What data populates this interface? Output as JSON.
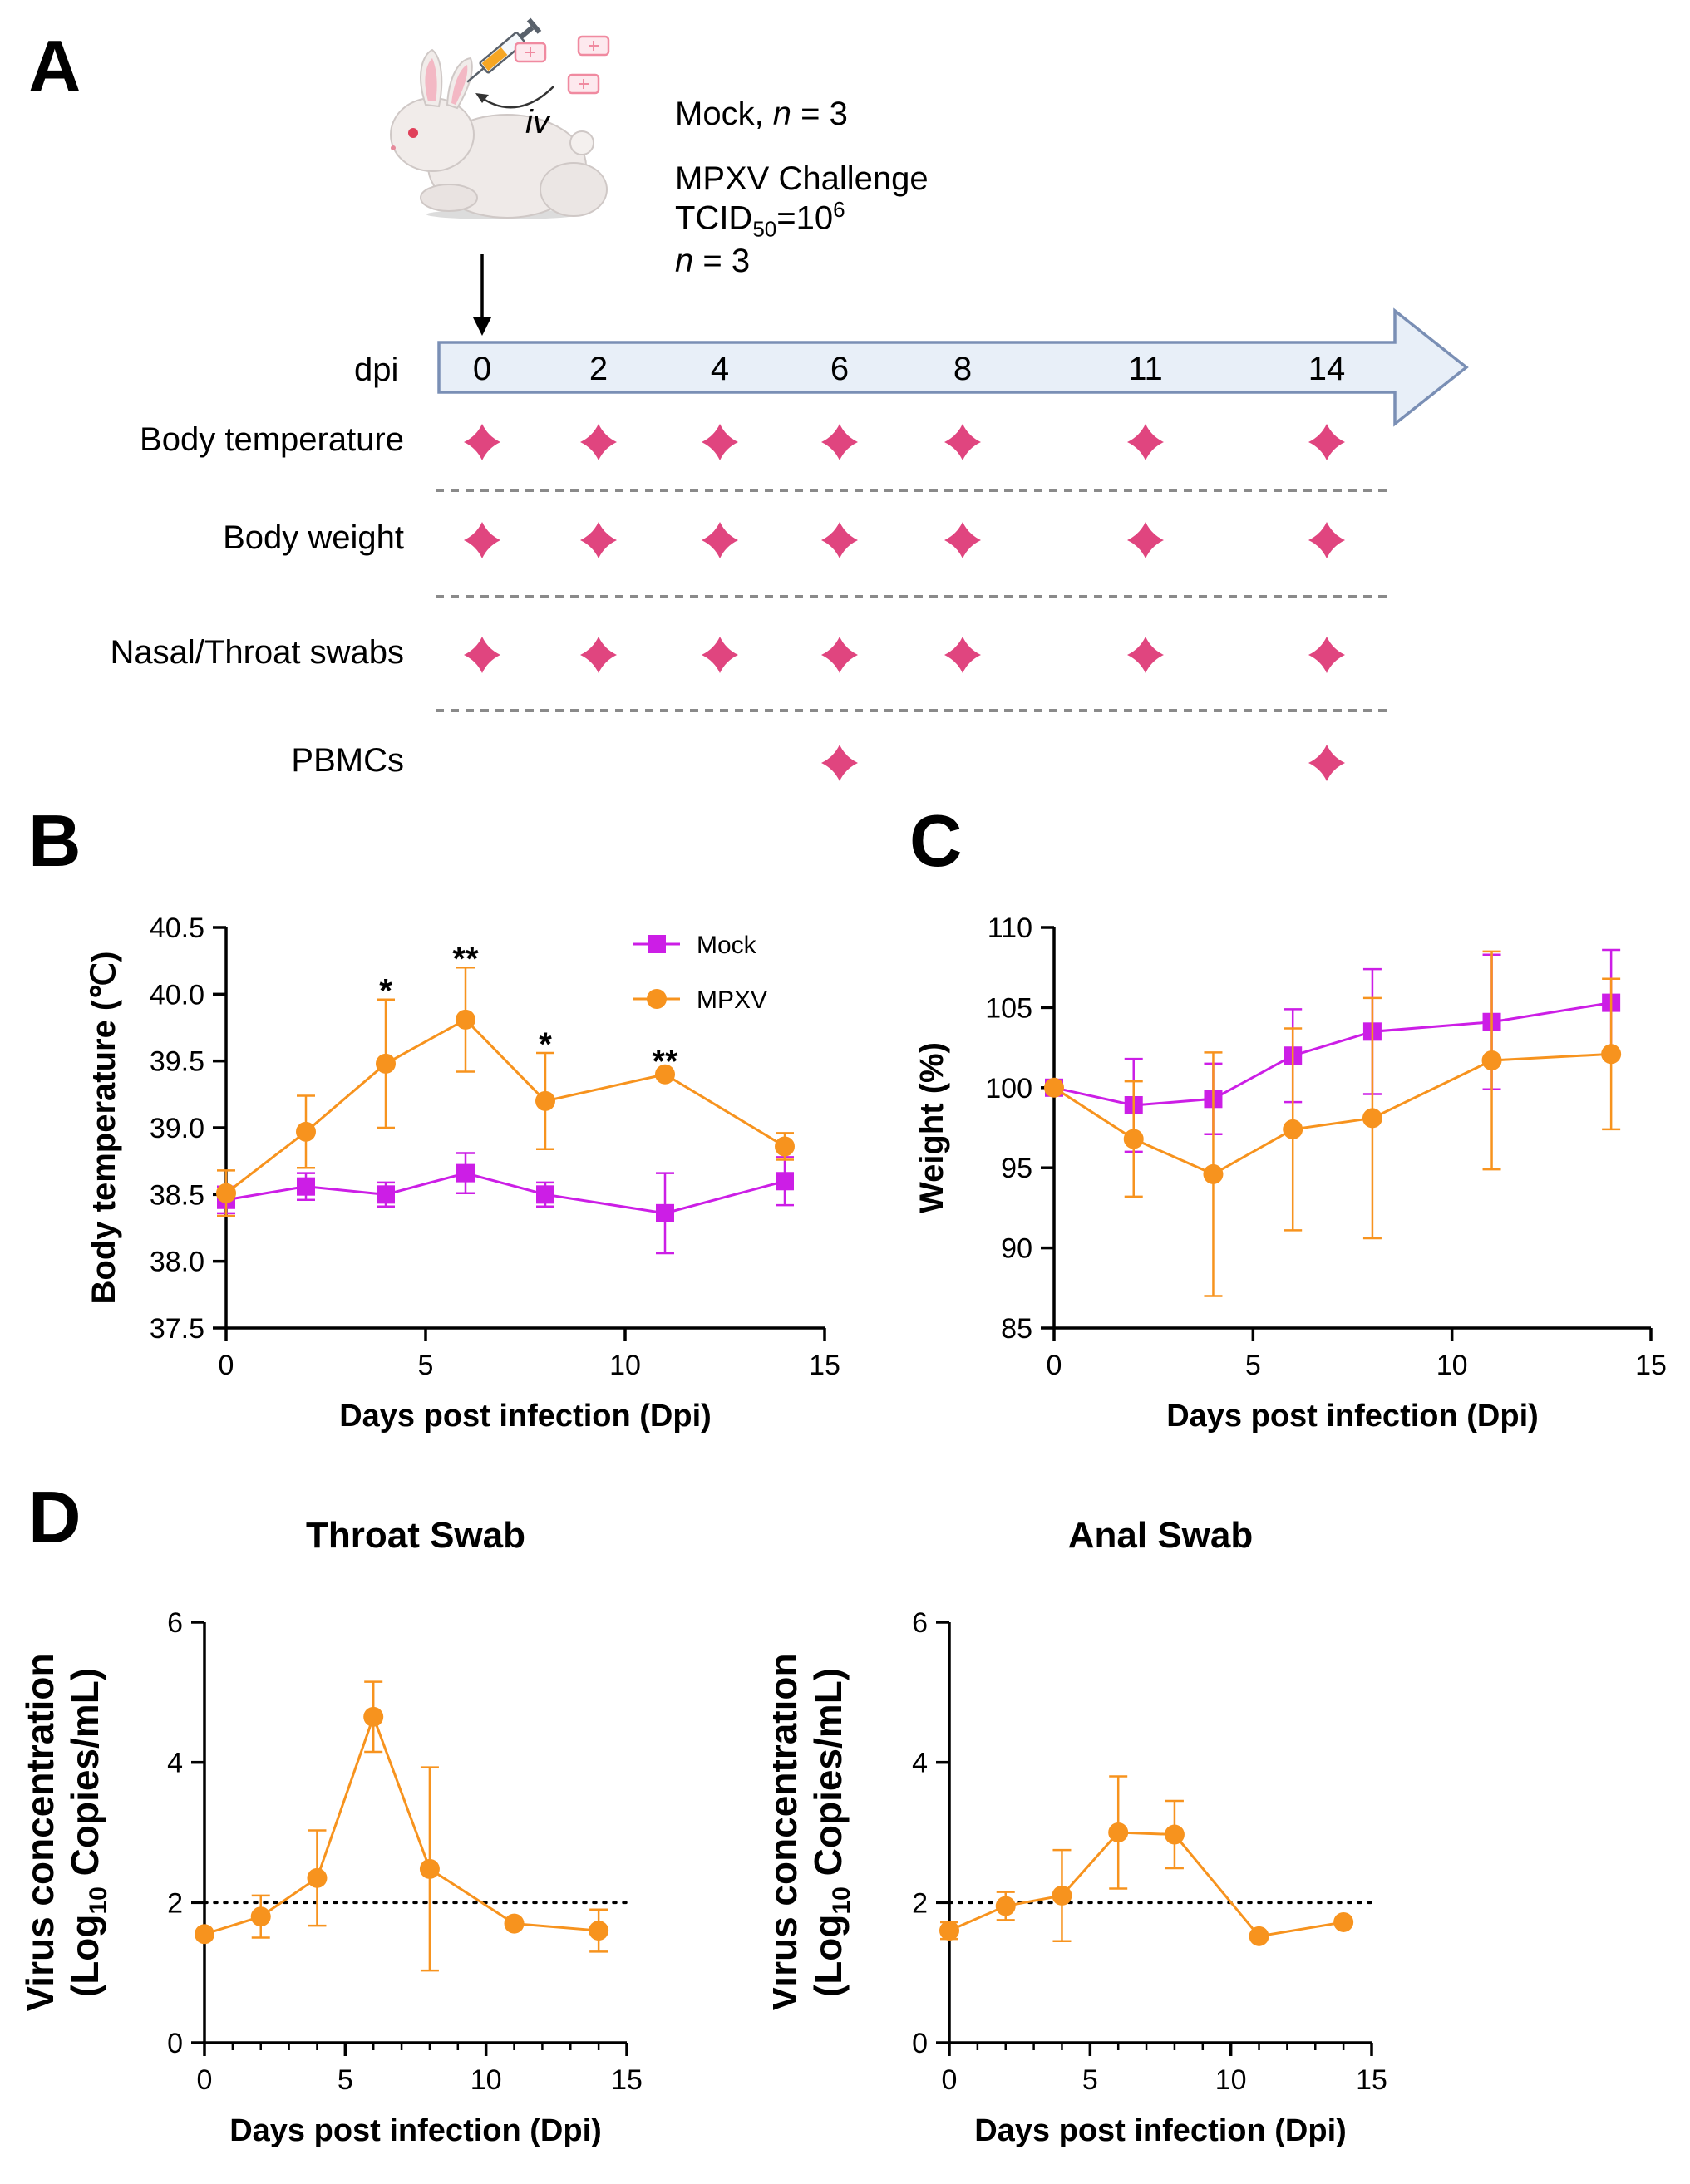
{
  "panels": {
    "a": "A",
    "b": "B",
    "c": "C",
    "d": "D"
  },
  "panel_a": {
    "route_label": "iv",
    "mock_label": "Mock, ",
    "mock_n_label": "n",
    "mock_n_value": " = 3",
    "challenge_title": "MPXV Challenge",
    "dose_prefix": "TCID",
    "dose_sub": "50",
    "dose_mid": "=10",
    "dose_sup": "6",
    "challenge_n_label": "n",
    "challenge_n_value": " = 3",
    "timeline_label": "dpi",
    "days": [
      "0",
      "2",
      "4",
      "6",
      "8",
      "11",
      "14"
    ],
    "rows": [
      {
        "label": "Body temperature",
        "days": [
          "0",
          "2",
          "4",
          "6",
          "8",
          "11",
          "14"
        ]
      },
      {
        "label": "Body weight",
        "days": [
          "0",
          "2",
          "4",
          "6",
          "8",
          "11",
          "14"
        ]
      },
      {
        "label": "Nasal/Throat swabs",
        "days": [
          "0",
          "2",
          "4",
          "6",
          "8",
          "11",
          "14"
        ]
      },
      {
        "label": "PBMCs",
        "days": [
          "6",
          "14"
        ]
      }
    ],
    "colors": {
      "marker": "#e0457f",
      "arrow_fill": "#e8eff8",
      "arrow_stroke": "#7a8fb5"
    }
  },
  "chart_data": [
    {
      "id": "B",
      "type": "line",
      "xlabel": "Days post infection (Dpi)",
      "ylabel": "Body temperature (℃)",
      "xlim": [
        0,
        15
      ],
      "ylim": [
        37.5,
        40.5
      ],
      "xticks": [
        "0",
        "5",
        "10",
        "15"
      ],
      "yticks": [
        "37.5",
        "38.0",
        "38.5",
        "39.0",
        "39.5",
        "40.0",
        "40.5"
      ],
      "legend": "top-right",
      "x": [
        0,
        2,
        4,
        6,
        8,
        11,
        14
      ],
      "series": [
        {
          "name": "Mock",
          "color": "#cc1ee6",
          "marker": "square",
          "values": [
            38.46,
            38.56,
            38.5,
            38.66,
            38.5,
            38.36,
            38.6
          ],
          "errors": [
            0.1,
            0.1,
            0.09,
            0.15,
            0.09,
            0.3,
            0.18
          ]
        },
        {
          "name": "MPXV",
          "color": "#f7931e",
          "marker": "circle",
          "values": [
            38.51,
            38.97,
            39.48,
            39.81,
            39.2,
            39.4,
            38.86
          ],
          "errors": [
            0.17,
            0.27,
            0.48,
            0.39,
            0.36,
            0.0,
            0.1
          ]
        }
      ],
      "annotations": [
        {
          "x": 4,
          "text": "*",
          "value": 40.03
        },
        {
          "x": 6,
          "text": "**",
          "value": 40.27
        },
        {
          "x": 8,
          "text": "*",
          "value": 39.63
        },
        {
          "x": 11,
          "text": "**",
          "value": 39.5
        }
      ]
    },
    {
      "id": "C",
      "type": "line",
      "xlabel": "Days post infection (Dpi)",
      "ylabel": "Weight (%)",
      "xlim": [
        0,
        15
      ],
      "ylim": [
        85,
        110
      ],
      "xticks": [
        "0",
        "5",
        "10",
        "15"
      ],
      "yticks": [
        "85",
        "90",
        "95",
        "100",
        "105",
        "110"
      ],
      "x": [
        0,
        2,
        4,
        6,
        8,
        11,
        14
      ],
      "series": [
        {
          "name": "Mock",
          "color": "#cc1ee6",
          "marker": "square",
          "values": [
            100.0,
            98.9,
            99.3,
            102.0,
            103.5,
            104.1,
            105.3
          ],
          "errors": [
            0.0,
            2.9,
            2.2,
            2.9,
            3.9,
            4.2,
            3.3
          ]
        },
        {
          "name": "MPXV",
          "color": "#f7931e",
          "marker": "circle",
          "values": [
            100.0,
            96.8,
            94.6,
            97.4,
            98.1,
            101.7,
            102.1
          ],
          "errors": [
            0.0,
            3.6,
            7.6,
            6.3,
            7.5,
            6.8,
            4.7
          ]
        }
      ]
    },
    {
      "id": "D1",
      "type": "line",
      "title": "Throat Swab",
      "xlabel": "Days post infection (Dpi)",
      "ylabel_line1": "Virus concentration",
      "ylabel_line2_prefix": "(Log",
      "ylabel_line2_sub": "10",
      "ylabel_line2_suffix": " Copies/mL)",
      "xlim": [
        0,
        15
      ],
      "ylim": [
        0,
        6
      ],
      "xticks": [
        "0",
        "5",
        "10",
        "15"
      ],
      "yticks": [
        "0",
        "2",
        "4",
        "6"
      ],
      "threshold": 2,
      "x": [
        0,
        2,
        4,
        6,
        8,
        11,
        14
      ],
      "series": [
        {
          "name": "MPXV",
          "color": "#f7931e",
          "marker": "circle",
          "values": [
            1.55,
            1.8,
            2.35,
            4.65,
            2.48,
            1.7,
            1.6
          ],
          "errors": [
            0.0,
            0.3,
            0.68,
            0.5,
            1.45,
            0.0,
            0.3
          ]
        }
      ]
    },
    {
      "id": "D2",
      "type": "line",
      "title": "Anal Swab",
      "xlabel": "Days post infection (Dpi)",
      "ylabel_line1": "Virus concentration",
      "ylabel_line2_prefix": "(Log",
      "ylabel_line2_sub": "10",
      "ylabel_line2_suffix": " Copies/mL)",
      "xlim": [
        0,
        15
      ],
      "ylim": [
        0,
        6
      ],
      "xticks": [
        "0",
        "5",
        "10",
        "15"
      ],
      "yticks": [
        "0",
        "2",
        "4",
        "6"
      ],
      "threshold": 2,
      "x": [
        0,
        2,
        4,
        6,
        8,
        11,
        14
      ],
      "series": [
        {
          "name": "MPXV",
          "color": "#f7931e",
          "marker": "circle",
          "values": [
            1.6,
            1.95,
            2.1,
            3.0,
            2.97,
            1.52,
            1.72
          ],
          "errors": [
            0.12,
            0.2,
            0.65,
            0.8,
            0.48,
            0.0,
            0.0
          ]
        }
      ]
    }
  ]
}
